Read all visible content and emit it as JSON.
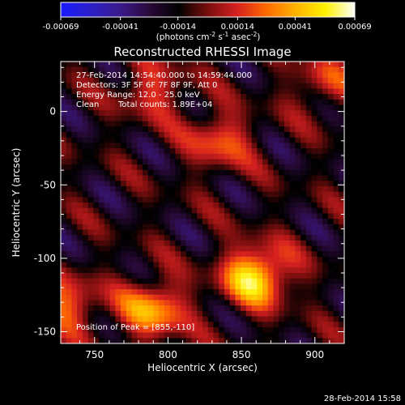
{
  "colorbar": {
    "ticks": [
      "-0.00069",
      "-0.00041",
      "-0.00014",
      "0.00014",
      "0.00041",
      "0.00069"
    ],
    "units_main": "(photons cm",
    "units_sup1": "-2",
    "units_mid": " s",
    "units_sup2": "-1",
    "units_tail": " asec",
    "units_sup3": "-2",
    "units_end": ")"
  },
  "chart_data": {
    "type": "heatmap",
    "title": "Reconstructed RHESSI Image",
    "xlabel": "Heliocentric X (arcsec)",
    "ylabel": "Heliocentric Y (arcsec)",
    "xlim": [
      727,
      920
    ],
    "ylim": [
      -158,
      34
    ],
    "xticks": [
      750,
      800,
      850,
      900
    ],
    "yticks": [
      0,
      -50,
      -100,
      -150
    ],
    "color_range": [
      -0.00069,
      0.00069
    ],
    "colormap": [
      "#1a1aff",
      "#2b1fc8",
      "#3a1a8c",
      "#2a0a3a",
      "#000000",
      "#7a0e0e",
      "#d62020",
      "#ff6a00",
      "#ffb300",
      "#fff200",
      "#ffffff"
    ],
    "annotations": {
      "time_range": "27-Feb-2014 14:54:40.000 to 14:59:44.000",
      "detectors": "Detectors: 3F 5F 6F 7F 8F 9F, Att 0",
      "energy": "Energy Range: 12.0 - 25.0 keV",
      "method": "Clean",
      "counts": "Total counts: 1.89E+04",
      "peak": "Position of Peak = [855,-110]"
    },
    "peak_position": [
      855,
      -110
    ],
    "sources": [
      {
        "x": 860,
        "y": -112,
        "strength": 0.00069
      },
      {
        "x": 790,
        "y": -135,
        "strength": 0.00052
      },
      {
        "x": 730,
        "y": -132,
        "strength": 0.0004
      },
      {
        "x": 835,
        "y": -20,
        "strength": 0.00036
      },
      {
        "x": 790,
        "y": 15,
        "strength": 0.0003
      },
      {
        "x": 905,
        "y": 20,
        "strength": 0.00026
      }
    ]
  },
  "footer": {
    "timestamp": "28-Feb-2014 15:58"
  }
}
